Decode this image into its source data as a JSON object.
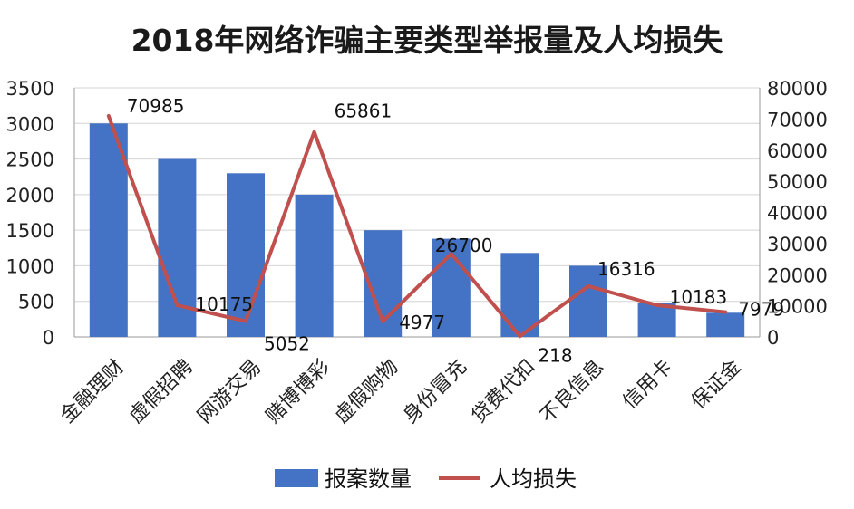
{
  "chart_data": {
    "type": "bar+line",
    "title": "2018年网络诈骗主要类型举报量及人均损失",
    "categories": [
      "金融理财",
      "虚假招聘",
      "网游交易",
      "赌博博彩",
      "虚假购物",
      "身份冒充",
      "贷费代扣",
      "不良信息",
      "信用卡",
      "保证金"
    ],
    "series": [
      {
        "name": "报案数量",
        "type": "bar",
        "axis": "left",
        "color": "#4472c4",
        "values": [
          3000,
          2500,
          2300,
          2000,
          1500,
          1380,
          1180,
          1000,
          480,
          340
        ]
      },
      {
        "name": "人均损失",
        "type": "line",
        "axis": "right",
        "color": "#c0504d",
        "values": [
          70985,
          10175,
          5052,
          65861,
          4977,
          26700,
          218,
          16316,
          10183,
          7979
        ],
        "data_labels": [
          "70985",
          "10175",
          "5052",
          "65861",
          "4977",
          "26700",
          "218",
          "16316",
          "10183",
          "7979"
        ]
      }
    ],
    "y_left": {
      "min": 0,
      "max": 3500,
      "step": 500,
      "ticks": [
        "0",
        "500",
        "1000",
        "1500",
        "2000",
        "2500",
        "3000",
        "3500"
      ]
    },
    "y_right": {
      "min": 0,
      "max": 80000,
      "step": 10000,
      "ticks": [
        "0",
        "10000",
        "20000",
        "30000",
        "40000",
        "50000",
        "60000",
        "70000",
        "80000"
      ]
    },
    "grid": true,
    "legend_position": "bottom",
    "legend": [
      "报案数量",
      "人均损失"
    ]
  }
}
